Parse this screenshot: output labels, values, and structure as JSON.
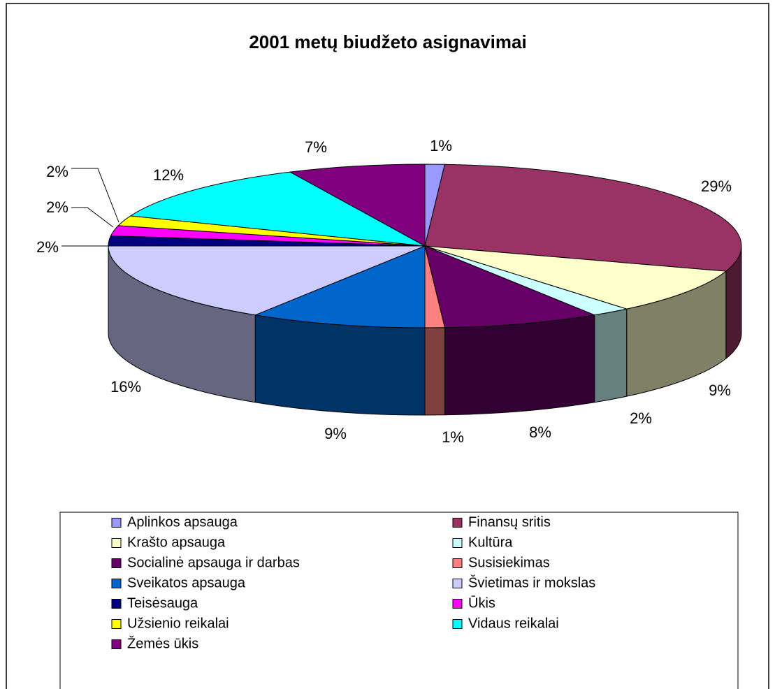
{
  "chart_data": {
    "type": "pie",
    "title": "2001 metų biudžeto asignavimai",
    "categories": [
      "Aplinkos apsauga",
      "Finansų sritis",
      "Krašto apsauga",
      "Kultūra",
      "Socialinė apsauga ir darbas",
      "Susisiekimas",
      "Sveikatos apsauga",
      "Švietimas ir mokslas",
      "Teisėsauga",
      "Ūkis",
      "Užsienio reikalai",
      "Vidaus reikalai",
      "Žemės ūkis"
    ],
    "values": [
      1,
      29,
      9,
      2,
      8,
      1,
      9,
      16,
      2,
      2,
      2,
      12,
      7
    ],
    "colors": [
      "#9999ff",
      "#993366",
      "#ffffcc",
      "#ccffff",
      "#660066",
      "#ff8080",
      "#0066cc",
      "#ccccff",
      "#000080",
      "#ff00ff",
      "#ffff00",
      "#00ffff",
      "#800080"
    ],
    "legend": "bottom"
  }
}
